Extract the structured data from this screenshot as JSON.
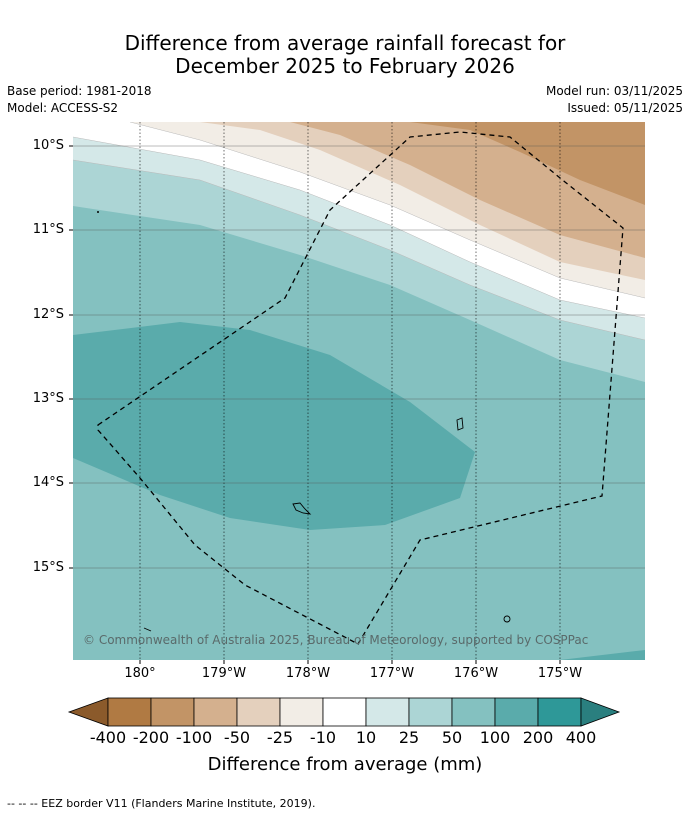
{
  "title": {
    "line1": "Difference from average rainfall forecast for",
    "line2": "December 2025 to February 2026"
  },
  "meta": {
    "base_period": "Base period: 1981-2018",
    "model": "Model: ACCESS-S2",
    "model_run": "Model run: 03/11/2025",
    "issued": "Issued: 05/11/2025"
  },
  "map": {
    "lat_labels": [
      "10°S",
      "11°S",
      "12°S",
      "13°S",
      "14°S",
      "15°S"
    ],
    "lon_labels": [
      "180°",
      "179°W",
      "178°W",
      "177°W",
      "176°W",
      "175°W"
    ],
    "copyright": "© Commonwealth of Australia 2025, Bureau of Meteorology, supported by COSPPac"
  },
  "colorbar": {
    "labels": [
      "-400",
      "-200",
      "-100",
      "-50",
      "-25",
      "-10",
      "10",
      "25",
      "50",
      "100",
      "200",
      "400"
    ],
    "colors": [
      "#8b5a2b",
      "#b07a43",
      "#c29466",
      "#d4b08e",
      "#e4d0bd",
      "#f2ede6",
      "#ffffff",
      "#d4e8e8",
      "#acd5d5",
      "#84c1c0",
      "#5aabab",
      "#2e9898",
      "#2a7f7f"
    ],
    "title": "Difference from average (mm)"
  },
  "footnote": "--  --  -- EEZ border V11 (Flanders Marine Institute, 2019)."
}
